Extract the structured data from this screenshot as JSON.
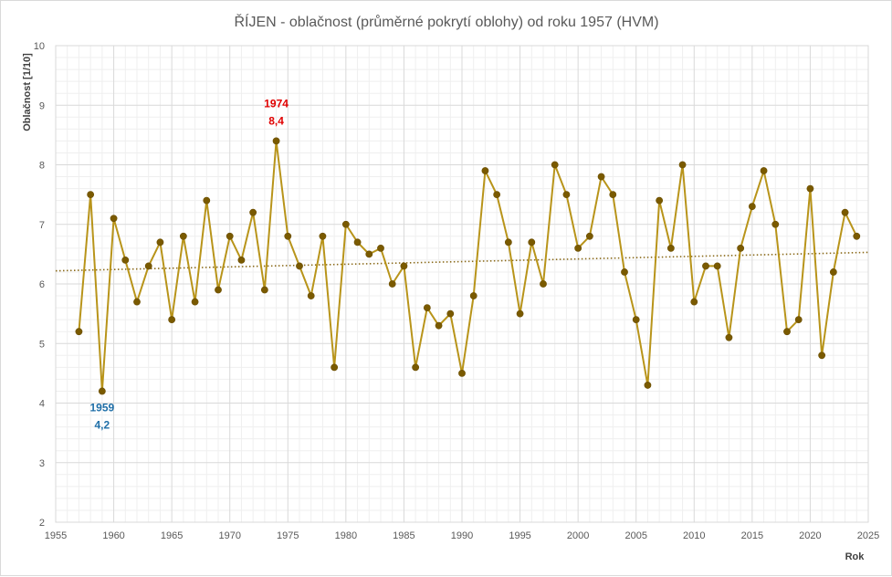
{
  "chart_data": {
    "type": "line",
    "title": "ŘÍJEN - oblačnost (průměrné pokrytí oblohy) od roku 1957 (HVM)",
    "xlabel": "Rok",
    "ylabel": "Oblačnost  [1/10]",
    "xlim": [
      1955,
      2025
    ],
    "ylim": [
      2,
      10
    ],
    "x_ticks": [
      1955,
      1960,
      1965,
      1970,
      1975,
      1980,
      1985,
      1990,
      1995,
      2000,
      2005,
      2010,
      2015,
      2020,
      2025
    ],
    "y_ticks": [
      2,
      3,
      4,
      5,
      6,
      7,
      8,
      9,
      10
    ],
    "grid": true,
    "legend": "none",
    "series": [
      {
        "x": [
          1957,
          1958,
          1959,
          1960,
          1961,
          1962,
          1963,
          1964,
          1965,
          1966,
          1967,
          1968,
          1969,
          1970,
          1971,
          1972,
          1973,
          1974,
          1975,
          1976,
          1977,
          1978,
          1979,
          1980,
          1981,
          1982,
          1983,
          1984,
          1985,
          1986,
          1987,
          1988,
          1989,
          1990,
          1991,
          1992,
          1993,
          1994,
          1995,
          1996,
          1997,
          1998,
          1999,
          2000,
          2001,
          2002,
          2003,
          2004,
          2005,
          2006,
          2007,
          2008,
          2009,
          2010,
          2011,
          2012,
          2013,
          2014,
          2015,
          2016,
          2017,
          2018,
          2019,
          2020,
          2021,
          2022,
          2023,
          2024
        ],
        "values": [
          5.2,
          7.5,
          4.2,
          7.1,
          6.4,
          5.7,
          6.3,
          6.7,
          5.4,
          6.8,
          5.7,
          7.4,
          5.9,
          6.8,
          6.4,
          7.2,
          5.9,
          8.4,
          6.8,
          6.3,
          5.8,
          6.8,
          4.6,
          7.0,
          6.7,
          6.5,
          6.6,
          6.0,
          6.3,
          4.6,
          5.6,
          5.3,
          5.5,
          4.5,
          5.8,
          7.9,
          7.5,
          6.7,
          5.5,
          6.7,
          6.0,
          8.0,
          7.5,
          6.6,
          6.8,
          7.8,
          7.5,
          6.2,
          5.4,
          4.3,
          7.4,
          6.6,
          8.0,
          5.7,
          6.3,
          6.3,
          5.1,
          6.6,
          7.3,
          7.9,
          7.0,
          5.2,
          5.4,
          7.6,
          4.8,
          6.2,
          7.2,
          6.8
        ],
        "color": "#b8941a",
        "marker_color": "#7a5a00"
      }
    ],
    "trendline": {
      "style": "dotted",
      "color": "#8a6a1a",
      "start": [
        1955,
        6.22
      ],
      "end": [
        2025,
        6.53
      ]
    },
    "annotations": [
      {
        "year": "1974",
        "value": "8,4",
        "color": "#e00000"
      },
      {
        "year": "1959",
        "value": "4,2",
        "color": "#1f6fa8"
      }
    ]
  }
}
